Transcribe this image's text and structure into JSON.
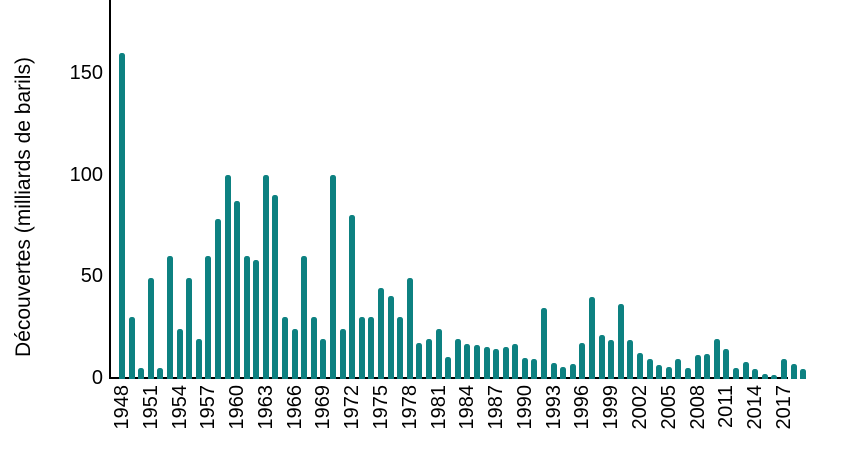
{
  "figure": {
    "background": "#ffffff",
    "bar_color": "#0d8181",
    "axis_color": "#000000",
    "text_color": "#000000"
  },
  "chart_data": {
    "type": "bar",
    "title": "",
    "xlabel": "",
    "ylabel": "Découvertes (milliards de barils)",
    "ylim": [
      0,
      178
    ],
    "yticks": [
      0,
      50,
      100,
      150
    ],
    "xticks": [
      1948,
      1951,
      1954,
      1957,
      1960,
      1963,
      1966,
      1969,
      1972,
      1975,
      1978,
      1981,
      1984,
      1987,
      1990,
      1993,
      1996,
      1999,
      2002,
      2005,
      2008,
      2011,
      2014,
      2017
    ],
    "grid": false,
    "legend": null,
    "categories": [
      1948,
      1949,
      1950,
      1951,
      1952,
      1953,
      1954,
      1955,
      1956,
      1957,
      1958,
      1959,
      1960,
      1961,
      1962,
      1963,
      1964,
      1965,
      1966,
      1967,
      1968,
      1969,
      1970,
      1971,
      1972,
      1973,
      1974,
      1975,
      1976,
      1977,
      1978,
      1979,
      1980,
      1981,
      1982,
      1983,
      1984,
      1985,
      1986,
      1987,
      1988,
      1989,
      1990,
      1991,
      1992,
      1993,
      1994,
      1995,
      1996,
      1997,
      1998,
      1999,
      2000,
      2001,
      2002,
      2003,
      2004,
      2005,
      2006,
      2007,
      2008,
      2009,
      2010,
      2011,
      2012,
      2013,
      2014,
      2015,
      2016,
      2017,
      2018,
      2019
    ],
    "values": [
      160,
      30,
      4.5,
      49,
      4.5,
      60,
      24,
      49,
      19,
      60,
      78,
      100,
      87,
      60,
      58,
      100,
      90,
      30,
      24,
      60,
      30,
      19,
      100,
      24,
      80,
      30,
      30,
      44,
      40,
      30,
      49,
      17,
      19,
      24,
      10,
      19,
      16.5,
      16,
      15,
      14,
      15,
      16.5,
      9.5,
      9,
      34.5,
      7,
      5,
      6.5,
      17,
      39.5,
      21,
      18.5,
      36.5,
      18.5,
      12,
      9,
      6,
      5,
      9,
      4.5,
      11,
      11.5,
      19,
      14,
      4.5,
      7.5,
      4,
      1.5,
      1,
      9,
      6.5,
      4
    ]
  }
}
